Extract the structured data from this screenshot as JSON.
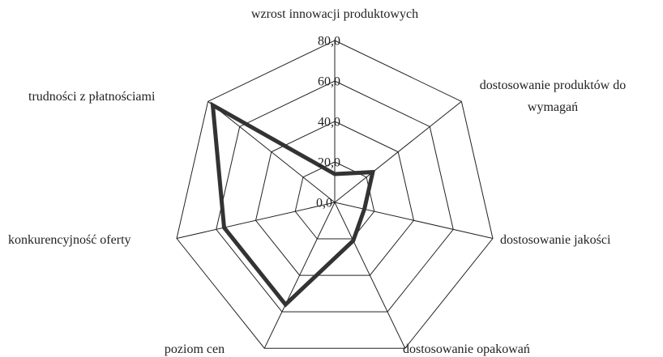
{
  "chart_data": {
    "type": "radar",
    "categories": [
      "wzrost innowacji produktowych",
      "dostosowanie produktów do wymagań",
      "dostosowanie jakości",
      "dostosowanie opakowań",
      "poziom cen",
      "konkurencyjność oferty",
      "trudności z płatnościami"
    ],
    "values": [
      14,
      24,
      15,
      21,
      56,
      56,
      77
    ],
    "color": "#333333",
    "rlim": [
      0,
      80
    ],
    "rticks": [
      {
        "value": 0,
        "label": "0,0"
      },
      {
        "value": 20,
        "label": "20,0"
      },
      {
        "value": 40,
        "label": "40,0"
      },
      {
        "value": 60,
        "label": "60,0"
      },
      {
        "value": 80,
        "label": "80,0"
      }
    ],
    "grid": true
  }
}
